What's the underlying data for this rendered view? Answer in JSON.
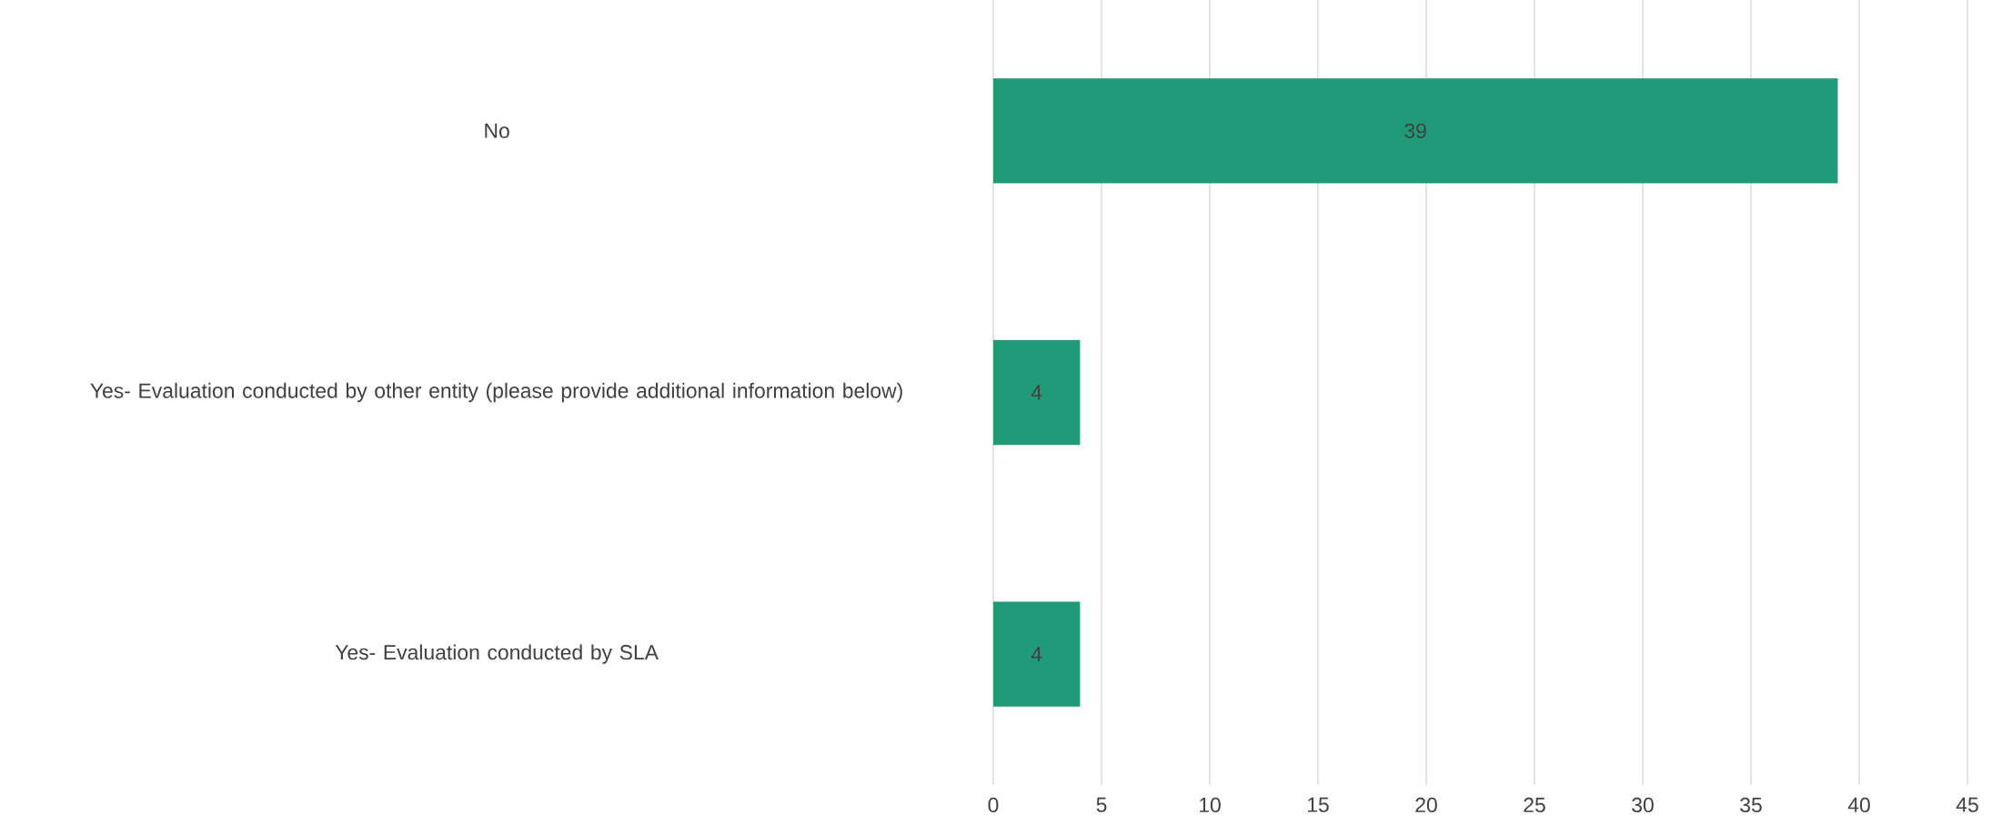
{
  "chart_data": {
    "type": "bar",
    "orientation": "horizontal",
    "categories": [
      "No",
      "Yes- Evaluation conducted by other entity (please provide additional information below)",
      "Yes- Evaluation conducted by SLA"
    ],
    "values": [
      39,
      4,
      4
    ],
    "color": "#1f9b78",
    "xlim": [
      0,
      45
    ],
    "xticks": [
      0,
      5,
      10,
      15,
      20,
      25,
      30,
      35,
      40,
      45
    ],
    "grid": "x",
    "data_labels": true
  }
}
